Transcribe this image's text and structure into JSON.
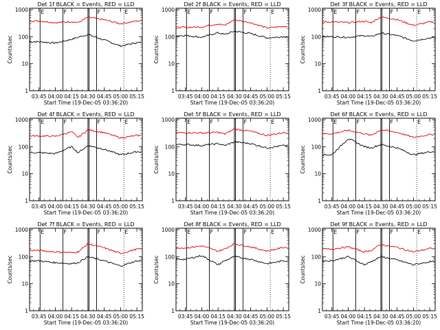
{
  "page": {
    "background": "#ffffff"
  },
  "colors": {
    "events": "#000000",
    "lld": "#e00000",
    "frame": "#000000"
  },
  "shared": {
    "ylabel": "Counts/sec",
    "yticks": [
      "1",
      "10",
      "100",
      "1000"
    ],
    "xticks_a": [
      "03:45",
      "04:00",
      "04:15",
      "04:30",
      "04:45",
      "05:00",
      "05:15"
    ],
    "xticks_b": [
      "03:45",
      "04:00",
      "04:15",
      "04:30",
      "04:45",
      "05:00",
      "05:15"
    ],
    "xlabel": "Start Time (19-Dec-05 03:36:20)",
    "markers": [
      "E",
      "F",
      "F",
      "E"
    ]
  },
  "chart_data": [
    {
      "type": "line",
      "title": "Det 1f BLACK = Events, RED = LLD",
      "xlabel": "Start Time (19-Dec-05 03:36:20)",
      "ylabel": "Counts/sec",
      "yscale": "log",
      "ylim": [
        1,
        1000
      ],
      "xticks": [
        "03:45",
        "04:00",
        "04:15",
        "04:30",
        "04:45",
        "05:00",
        "05:15"
      ],
      "series": [
        {
          "name": "Events",
          "color": "#000000",
          "x": [
            "03:45",
            "04:00",
            "04:15",
            "04:21",
            "04:30",
            "04:45",
            "05:00",
            "05:15"
          ],
          "y": [
            65,
            58,
            80,
            95,
            120,
            75,
            45,
            60
          ]
        },
        {
          "name": "LLD",
          "color": "#e00000",
          "x": [
            "03:45",
            "04:00",
            "04:15",
            "04:21",
            "04:30",
            "04:45",
            "05:00",
            "05:15"
          ],
          "y": [
            380,
            330,
            360,
            330,
            520,
            420,
            300,
            380
          ]
        }
      ]
    },
    {
      "type": "line",
      "title": "Det 2f BLACK = Events, RED = LLD",
      "xlabel": "Start Time (19-Dec-05 03:36:20)",
      "ylabel": "Counts/sec",
      "yscale": "log",
      "ylim": [
        1,
        1000
      ],
      "xticks": [
        "03:45",
        "04:00",
        "04:15",
        "04:30",
        "04:45",
        "05:00",
        "05:15"
      ],
      "series": [
        {
          "name": "Events",
          "color": "#000000",
          "x": [
            "03:45",
            "04:00",
            "04:15",
            "04:21",
            "04:30",
            "04:45",
            "05:00",
            "05:15"
          ],
          "y": [
            110,
            95,
            140,
            120,
            160,
            130,
            90,
            100
          ]
        },
        {
          "name": "LLD",
          "color": "#e00000",
          "x": [
            "03:45",
            "04:00",
            "04:15",
            "04:21",
            "04:30",
            "04:45",
            "05:00",
            "05:15"
          ],
          "y": [
            220,
            230,
            300,
            260,
            420,
            330,
            210,
            240
          ]
        }
      ]
    },
    {
      "type": "line",
      "title": "Det 3f BLACK = Events, RED = LLD",
      "xlabel": "Start Time (19-Dec-05 03:36:20)",
      "ylabel": "Counts/sec",
      "yscale": "log",
      "ylim": [
        1,
        1000
      ],
      "xticks": [
        "03:45",
        "04:00",
        "04:15",
        "04:30",
        "04:45",
        "05:00",
        "05:15"
      ],
      "series": [
        {
          "name": "Events",
          "color": "#000000",
          "x": [
            "03:45",
            "04:00",
            "04:15",
            "04:21",
            "04:30",
            "04:45",
            "05:00",
            "05:15"
          ],
          "y": [
            100,
            95,
            110,
            100,
            135,
            110,
            70,
            90
          ]
        },
        {
          "name": "LLD",
          "color": "#e00000",
          "x": [
            "03:45",
            "04:00",
            "04:15",
            "04:21",
            "04:30",
            "04:45",
            "05:00",
            "05:15"
          ],
          "y": [
            350,
            330,
            370,
            330,
            530,
            430,
            260,
            350
          ]
        }
      ]
    },
    {
      "type": "line",
      "title": "Det 4f BLACK = Events, RED = LLD",
      "xlabel": "Start Time (19-Dec-05 03:36:20)",
      "ylabel": "Counts/sec",
      "yscale": "log",
      "ylim": [
        1,
        1000
      ],
      "xticks": [
        "03:45",
        "04:00",
        "04:15",
        "04:30",
        "04:45",
        "05:00",
        "05:15"
      ],
      "series": [
        {
          "name": "Events",
          "color": "#000000",
          "x": [
            "03:45",
            "04:00",
            "04:15",
            "04:21",
            "04:30",
            "04:45",
            "05:00",
            "05:15"
          ],
          "y": [
            60,
            55,
            100,
            60,
            110,
            80,
            50,
            65
          ]
        },
        {
          "name": "LLD",
          "color": "#e00000",
          "x": [
            "03:45",
            "04:00",
            "04:15",
            "04:21",
            "04:30",
            "04:45",
            "05:00",
            "05:15"
          ],
          "y": [
            250,
            240,
            350,
            220,
            420,
            330,
            210,
            260
          ]
        }
      ]
    },
    {
      "type": "line",
      "title": "Det 5f BLACK = Events, RED = LLD",
      "xlabel": "Start Time (19-Dec-05 03:36:20)",
      "ylabel": "Counts/sec",
      "yscale": "log",
      "ylim": [
        1,
        1000
      ],
      "xticks": [
        "03:45",
        "04:00",
        "04:15",
        "04:30",
        "04:45",
        "05:00",
        "05:15"
      ],
      "series": [
        {
          "name": "Events",
          "color": "#000000",
          "x": [
            "03:45",
            "04:00",
            "04:15",
            "04:21",
            "04:30",
            "04:45",
            "05:00",
            "05:15"
          ],
          "y": [
            120,
            110,
            130,
            110,
            150,
            130,
            90,
            110
          ]
        },
        {
          "name": "LLD",
          "color": "#e00000",
          "x": [
            "03:45",
            "04:00",
            "04:15",
            "04:21",
            "04:30",
            "04:45",
            "05:00",
            "05:15"
          ],
          "y": [
            330,
            320,
            340,
            290,
            450,
            370,
            260,
            330
          ]
        }
      ]
    },
    {
      "type": "line",
      "title": "Det 6f BLACK = Events, RED = LLD",
      "xlabel": "Start Time (19-Dec-05 03:36:20)",
      "ylabel": "Counts/sec",
      "yscale": "log",
      "ylim": [
        1,
        1000
      ],
      "xticks": [
        "03:45",
        "04:00",
        "04:15",
        "04:30",
        "04:45",
        "05:00",
        "05:15"
      ],
      "series": [
        {
          "name": "Events",
          "color": "#000000",
          "x": [
            "03:45",
            "04:00",
            "04:15",
            "04:21",
            "04:30",
            "04:45",
            "05:00",
            "05:15"
          ],
          "y": [
            50,
            200,
            100,
            90,
            120,
            90,
            50,
            65
          ]
        },
        {
          "name": "LLD",
          "color": "#e00000",
          "x": [
            "03:45",
            "04:00",
            "04:15",
            "04:21",
            "04:30",
            "04:45",
            "05:00",
            "05:15"
          ],
          "y": [
            300,
            400,
            300,
            260,
            420,
            340,
            220,
            280
          ]
        }
      ]
    },
    {
      "type": "line",
      "title": "Det 7f BLACK = Events, RED = LLD",
      "xlabel": "Start Time (19-Dec-05 03:36:20)",
      "ylabel": "Counts/sec",
      "yscale": "log",
      "ylim": [
        1,
        1000
      ],
      "xticks": [
        "03:45",
        "04:00",
        "04:15",
        "04:30",
        "04:45",
        "05:00",
        "05:15"
      ],
      "series": [
        {
          "name": "Events",
          "color": "#000000",
          "x": [
            "03:45",
            "04:00",
            "04:15",
            "04:21",
            "04:30",
            "04:45",
            "05:00",
            "05:15"
          ],
          "y": [
            70,
            60,
            55,
            60,
            100,
            70,
            45,
            70
          ]
        },
        {
          "name": "LLD",
          "color": "#e00000",
          "x": [
            "03:45",
            "04:00",
            "04:15",
            "04:21",
            "04:30",
            "04:45",
            "05:00",
            "05:15"
          ],
          "y": [
            170,
            150,
            140,
            150,
            300,
            210,
            130,
            190
          ]
        }
      ]
    },
    {
      "type": "line",
      "title": "Det 8f BLACK = Events, RED = LLD",
      "xlabel": "Start Time (19-Dec-05 03:36:20)",
      "ylabel": "Counts/sec",
      "yscale": "log",
      "ylim": [
        1,
        1000
      ],
      "xticks": [
        "03:45",
        "04:00",
        "04:15",
        "04:30",
        "04:45",
        "05:00",
        "05:15"
      ],
      "series": [
        {
          "name": "Events",
          "color": "#000000",
          "x": [
            "03:45",
            "04:00",
            "04:15",
            "04:21",
            "04:30",
            "04:45",
            "05:00",
            "05:15"
          ],
          "y": [
            80,
            110,
            50,
            70,
            100,
            80,
            55,
            70
          ]
        },
        {
          "name": "LLD",
          "color": "#e00000",
          "x": [
            "03:45",
            "04:00",
            "04:15",
            "04:21",
            "04:30",
            "04:45",
            "05:00",
            "05:15"
          ],
          "y": [
            210,
            250,
            160,
            190,
            300,
            230,
            160,
            220
          ]
        }
      ]
    },
    {
      "type": "line",
      "title": "Det 9f BLACK = Events, RED = LLD",
      "xlabel": "Start Time (19-Dec-05 03:36:20)",
      "ylabel": "Counts/sec",
      "yscale": "log",
      "ylim": [
        1,
        1000
      ],
      "xticks": [
        "03:45",
        "04:00",
        "04:15",
        "04:30",
        "04:45",
        "05:00",
        "05:15"
      ],
      "series": [
        {
          "name": "Events",
          "color": "#000000",
          "x": [
            "03:45",
            "04:00",
            "04:15",
            "04:21",
            "04:30",
            "04:45",
            "05:00",
            "05:15"
          ],
          "y": [
            70,
            100,
            50,
            65,
            100,
            75,
            50,
            65
          ]
        },
        {
          "name": "LLD",
          "color": "#e00000",
          "x": [
            "03:45",
            "04:00",
            "04:15",
            "04:21",
            "04:30",
            "04:45",
            "05:00",
            "05:15"
          ],
          "y": [
            190,
            230,
            150,
            170,
            280,
            220,
            150,
            200
          ]
        }
      ]
    }
  ]
}
